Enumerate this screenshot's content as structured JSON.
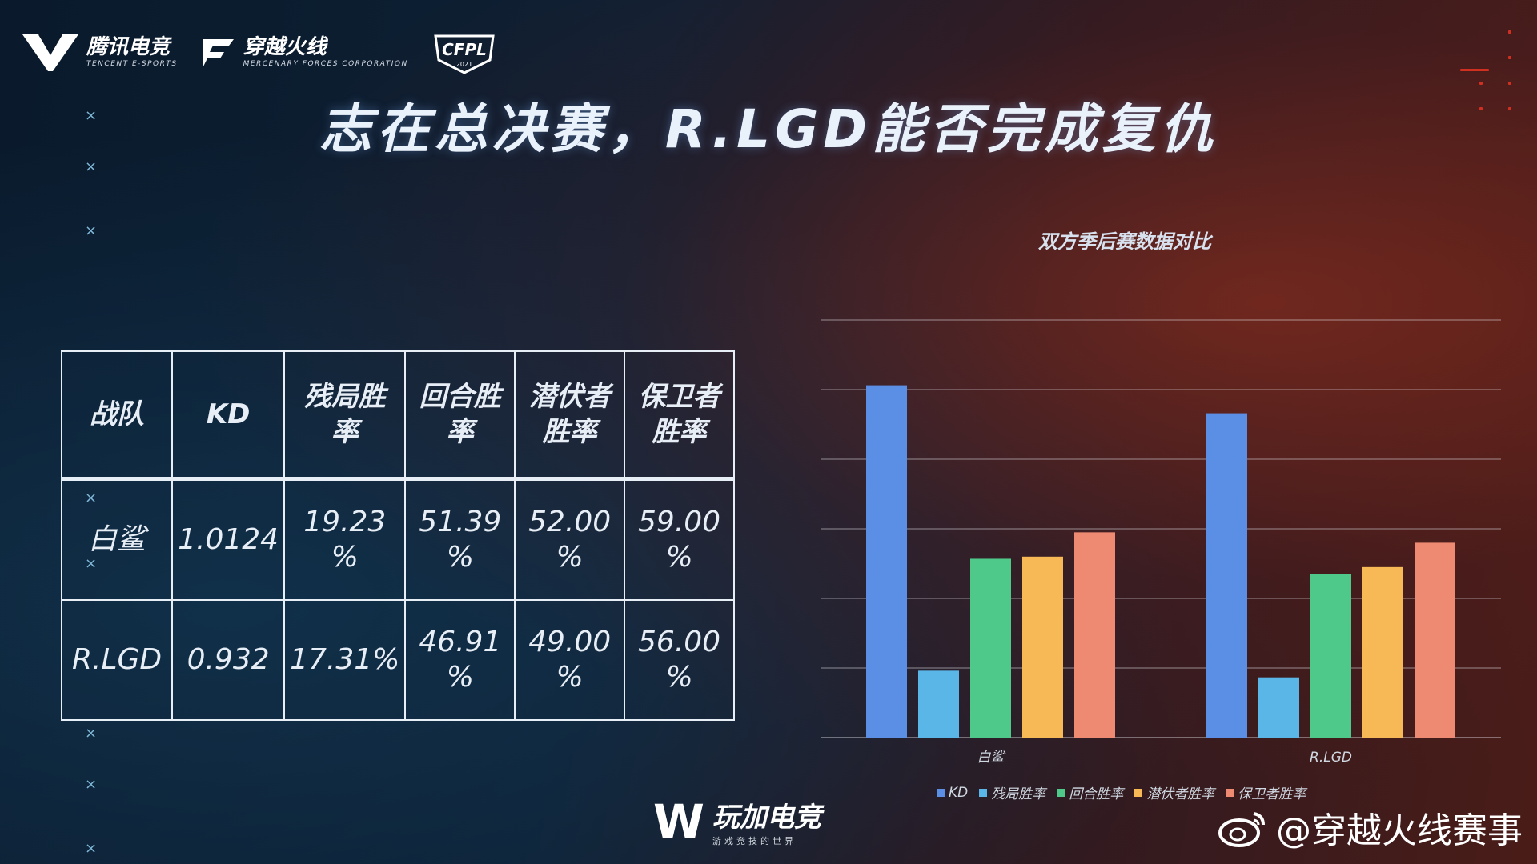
{
  "header": {
    "logos": [
      {
        "name": "腾讯电竞",
        "sub": "TENCENT E-SPORTS"
      },
      {
        "name": "穿越火线",
        "sub": "MERCENARY FORCES CORPORATION"
      },
      {
        "name": "CFPL",
        "sub": "2021"
      }
    ],
    "title": "志在总决赛，R.LGD能否完成复仇"
  },
  "table": {
    "headers": [
      "战队",
      "KD",
      "残局胜率",
      "回合胜率",
      "潜伏者胜率",
      "保卫者胜率"
    ],
    "header_lines": [
      [
        "战队"
      ],
      [
        "KD"
      ],
      [
        "残局胜",
        "率"
      ],
      [
        "回合胜",
        "率"
      ],
      [
        "潜伏者",
        "胜率"
      ],
      [
        "保卫者",
        "胜率"
      ]
    ],
    "rows": [
      {
        "cells": [
          [
            "白鲨"
          ],
          [
            "1.0124"
          ],
          [
            "19.23",
            "%"
          ],
          [
            "51.39",
            "%"
          ],
          [
            "52.00",
            "%"
          ],
          [
            "59.00",
            "%"
          ]
        ]
      },
      {
        "cells": [
          [
            "R.LGD"
          ],
          [
            "0.932"
          ],
          [
            "17.31%"
          ],
          [
            "46.91",
            "%"
          ],
          [
            "49.00",
            "%"
          ],
          [
            "56.00",
            "%"
          ]
        ]
      }
    ]
  },
  "chart_data": {
    "type": "bar",
    "title": "双方季后赛数据对比",
    "categories": [
      "白鲨",
      "R.LGD"
    ],
    "series": [
      {
        "name": "KD",
        "color": "#5b8fe6",
        "values": [
          1.0124,
          0.932
        ]
      },
      {
        "name": "残局胜率",
        "color": "#5bb6e8",
        "values": [
          0.1923,
          0.1731
        ]
      },
      {
        "name": "回合胜率",
        "color": "#4fc98a",
        "values": [
          0.5139,
          0.4691
        ]
      },
      {
        "name": "潜伏者胜率",
        "color": "#f7b955",
        "values": [
          0.52,
          0.49
        ]
      },
      {
        "name": "保卫者胜率",
        "color": "#ee8a72",
        "values": [
          0.59,
          0.56
        ]
      }
    ],
    "xlabel": "",
    "ylabel": "",
    "grid": true,
    "legend": "bottom"
  },
  "footer": {
    "brand": "玩加电竞",
    "brand_sub": "游戏竞技的世界",
    "weibo": "@穿越火线赛事"
  }
}
